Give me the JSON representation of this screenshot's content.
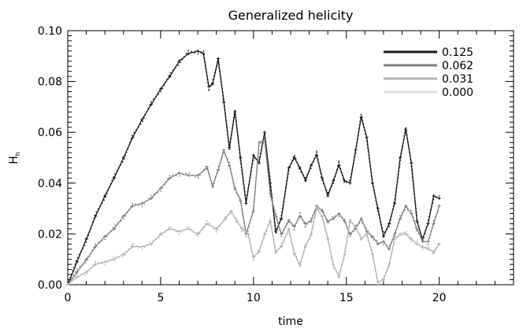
{
  "chart_data": {
    "type": "line",
    "title": "Generalized helicity",
    "xlabel": "time",
    "ylabel": "H",
    "ylabel_subscript": "h",
    "xlim": [
      0,
      24
    ],
    "ylim": [
      0,
      0.1
    ],
    "xticks": [
      0,
      5,
      10,
      15,
      20
    ],
    "xtick_labels": [
      "0",
      "5",
      "10",
      "15",
      "20"
    ],
    "yticks": [
      0,
      0.02,
      0.04,
      0.06,
      0.08,
      0.1
    ],
    "ytick_labels": [
      "0.00",
      "0.02",
      "0.04",
      "0.06",
      "0.08",
      "0.10"
    ],
    "grid": false,
    "legend_position": "top-right",
    "series": [
      {
        "name": "0.125",
        "color": "#1a1a1a",
        "x": [
          0,
          0.5,
          1,
          1.5,
          2,
          2.5,
          3,
          3.5,
          4,
          4.5,
          5,
          5.5,
          6,
          6.5,
          7,
          7.3,
          7.6,
          7.8,
          8.1,
          8.4,
          8.7,
          9.0,
          9.3,
          9.6,
          10.0,
          10.3,
          10.6,
          10.9,
          11.2,
          11.5,
          11.9,
          12.2,
          12.5,
          12.8,
          13.1,
          13.4,
          13.7,
          14.0,
          14.3,
          14.6,
          14.9,
          15.2,
          15.5,
          15.8,
          16.1,
          16.4,
          16.7,
          17.0,
          17.3,
          17.6,
          17.9,
          18.2,
          18.5,
          18.8,
          19.1,
          19.4,
          19.7,
          20.0
        ],
        "y": [
          0,
          0.009,
          0.018,
          0.027,
          0.035,
          0.042,
          0.05,
          0.058,
          0.065,
          0.071,
          0.077,
          0.082,
          0.088,
          0.091,
          0.092,
          0.091,
          0.078,
          0.079,
          0.089,
          0.072,
          0.054,
          0.068,
          0.05,
          0.032,
          0.051,
          0.048,
          0.06,
          0.04,
          0.021,
          0.026,
          0.046,
          0.05,
          0.046,
          0.041,
          0.047,
          0.051,
          0.042,
          0.035,
          0.041,
          0.047,
          0.041,
          0.04,
          0.053,
          0.066,
          0.058,
          0.04,
          0.03,
          0.019,
          0.024,
          0.032,
          0.05,
          0.061,
          0.048,
          0.025,
          0.018,
          0.024,
          0.035,
          0.034
        ]
      },
      {
        "name": "0.062",
        "color": "#808080",
        "x": [
          0,
          0.5,
          1,
          1.5,
          2,
          2.5,
          3,
          3.5,
          4,
          4.5,
          5,
          5.5,
          6,
          6.5,
          7,
          7.5,
          7.8,
          8.1,
          8.4,
          8.7,
          9.0,
          9.3,
          9.6,
          10.0,
          10.3,
          10.6,
          10.9,
          11.2,
          11.5,
          11.9,
          12.2,
          12.5,
          12.8,
          13.1,
          13.4,
          13.7,
          14.0,
          14.3,
          14.6,
          14.9,
          15.2,
          15.5,
          15.8,
          16.1,
          16.4,
          16.7,
          17.0,
          17.3,
          17.6,
          17.9,
          18.2,
          18.5,
          18.8,
          19.1,
          19.4,
          19.7,
          20.0
        ],
        "y": [
          0,
          0.005,
          0.01,
          0.015,
          0.019,
          0.022,
          0.027,
          0.031,
          0.032,
          0.034,
          0.038,
          0.042,
          0.044,
          0.043,
          0.043,
          0.046,
          0.039,
          0.045,
          0.053,
          0.047,
          0.038,
          0.033,
          0.02,
          0.029,
          0.056,
          0.057,
          0.036,
          0.027,
          0.02,
          0.025,
          0.023,
          0.027,
          0.024,
          0.025,
          0.031,
          0.029,
          0.025,
          0.026,
          0.028,
          0.025,
          0.02,
          0.022,
          0.026,
          0.021,
          0.019,
          0.016,
          0.017,
          0.014,
          0.02,
          0.026,
          0.031,
          0.028,
          0.022,
          0.017,
          0.017,
          0.024,
          0.031
        ]
      },
      {
        "name": "0.031",
        "color": "#b3b3b3",
        "x": [
          0,
          0.5,
          1,
          1.5,
          2,
          2.5,
          3,
          3.5,
          4,
          4.5,
          5,
          5.5,
          6,
          6.5,
          7,
          7.5,
          8.0,
          8.5,
          8.8,
          9.1,
          9.4,
          9.7,
          10.0,
          10.3,
          10.6,
          10.9,
          11.2,
          11.5,
          11.9,
          12.2,
          12.5,
          12.8,
          13.1,
          13.4,
          13.7,
          14.0,
          14.3,
          14.6,
          14.9,
          15.2,
          15.5,
          15.8,
          16.1,
          16.4,
          16.7,
          17.0,
          17.3,
          17.6,
          17.9,
          18.2,
          18.5,
          18.8,
          19.1,
          19.4,
          19.7,
          20.0
        ],
        "y": [
          0,
          0.003,
          0.005,
          0.008,
          0.009,
          0.01,
          0.012,
          0.015,
          0.015,
          0.016,
          0.02,
          0.022,
          0.021,
          0.022,
          0.02,
          0.024,
          0.022,
          0.026,
          0.029,
          0.025,
          0.022,
          0.02,
          0.011,
          0.013,
          0.02,
          0.025,
          0.013,
          0.015,
          0.022,
          0.012,
          0.008,
          0.015,
          0.02,
          0.03,
          0.027,
          0.018,
          0.008,
          0.003,
          0.012,
          0.025,
          0.023,
          0.018,
          0.02,
          0.012,
          0.001,
          0.002,
          0.008,
          0.018,
          0.02,
          0.02,
          0.018,
          0.016,
          0.015,
          0.014,
          0.013,
          0.016
        ]
      },
      {
        "name": "0.000",
        "color": "#dcdcdc",
        "x": [],
        "y": []
      }
    ]
  }
}
